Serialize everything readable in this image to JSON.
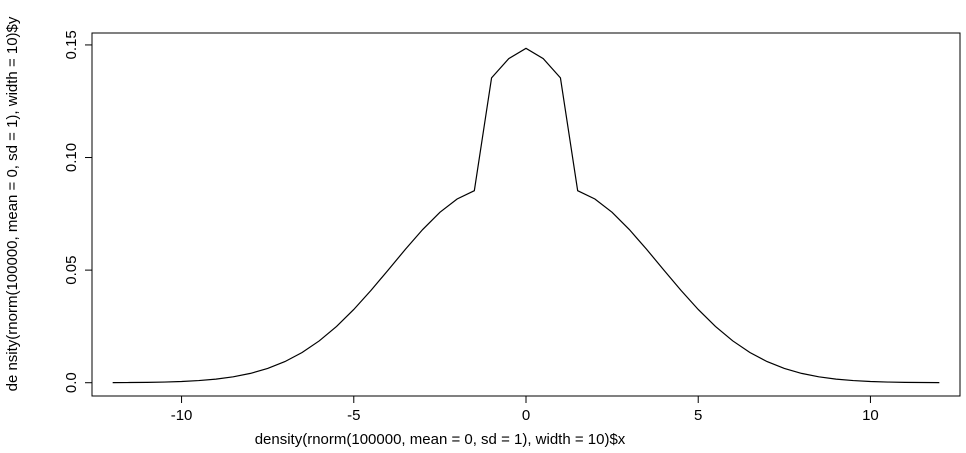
{
  "chart_data": {
    "type": "line",
    "title": "",
    "xlabel": "density(rnorm(100000, mean = 0, sd = 1), width = 10)$x",
    "ylabel": "de nsity(rnorm(100000, mean = 0, sd = 1), width = 10)$y",
    "xlim": [
      -12.6,
      12.6
    ],
    "ylim": [
      -0.0059,
      0.1553
    ],
    "x_ticks": [
      -10,
      -5,
      0,
      5,
      10
    ],
    "x_tick_labels": [
      "-10",
      "-5",
      "0",
      "5",
      "10"
    ],
    "y_ticks": [
      0.0,
      0.05,
      0.1,
      0.15
    ],
    "y_tick_labels": [
      "0.0",
      "0.05",
      "0.10",
      "0.15"
    ],
    "grid": false,
    "line_color": "#000000",
    "series": [
      {
        "x": [
          -12.0,
          -11.5,
          -11.0,
          -10.5,
          -10.0,
          -9.5,
          -9.0,
          -8.5,
          -8.0,
          -7.5,
          -7.0,
          -6.5,
          -6.0,
          -5.5,
          -5.0,
          -4.5,
          -4.0,
          -3.5,
          -3.0,
          -2.5,
          -2.0,
          -1.5,
          -1.0,
          -0.5,
          0.0,
          0.5,
          1.0,
          1.5,
          2.0,
          2.5,
          3.0,
          3.5,
          4.0,
          4.5,
          5.0,
          5.5,
          6.0,
          6.5,
          7.0,
          7.5,
          8.0,
          8.5,
          9.0,
          9.5,
          10.0,
          10.5,
          11.0,
          11.5,
          12.0
        ],
        "y": [
          4e-05,
          8e-05,
          0.00016,
          0.0003,
          0.00054,
          0.00095,
          0.0016,
          0.00262,
          0.00414,
          0.00633,
          0.00937,
          0.01342,
          0.01861,
          0.025,
          0.03252,
          0.04099,
          0.05006,
          0.05927,
          0.06802,
          0.07567,
          0.08159,
          0.08528,
          0.13537,
          0.14394,
          0.1485,
          0.14394,
          0.13537,
          0.08528,
          0.08159,
          0.07567,
          0.06802,
          0.05927,
          0.05006,
          0.04099,
          0.03252,
          0.025,
          0.01861,
          0.01342,
          0.00937,
          0.00633,
          0.00414,
          0.00262,
          0.0016,
          0.00095,
          0.00054,
          0.0003,
          0.00016,
          8e-05,
          4e-05
        ]
      }
    ]
  }
}
